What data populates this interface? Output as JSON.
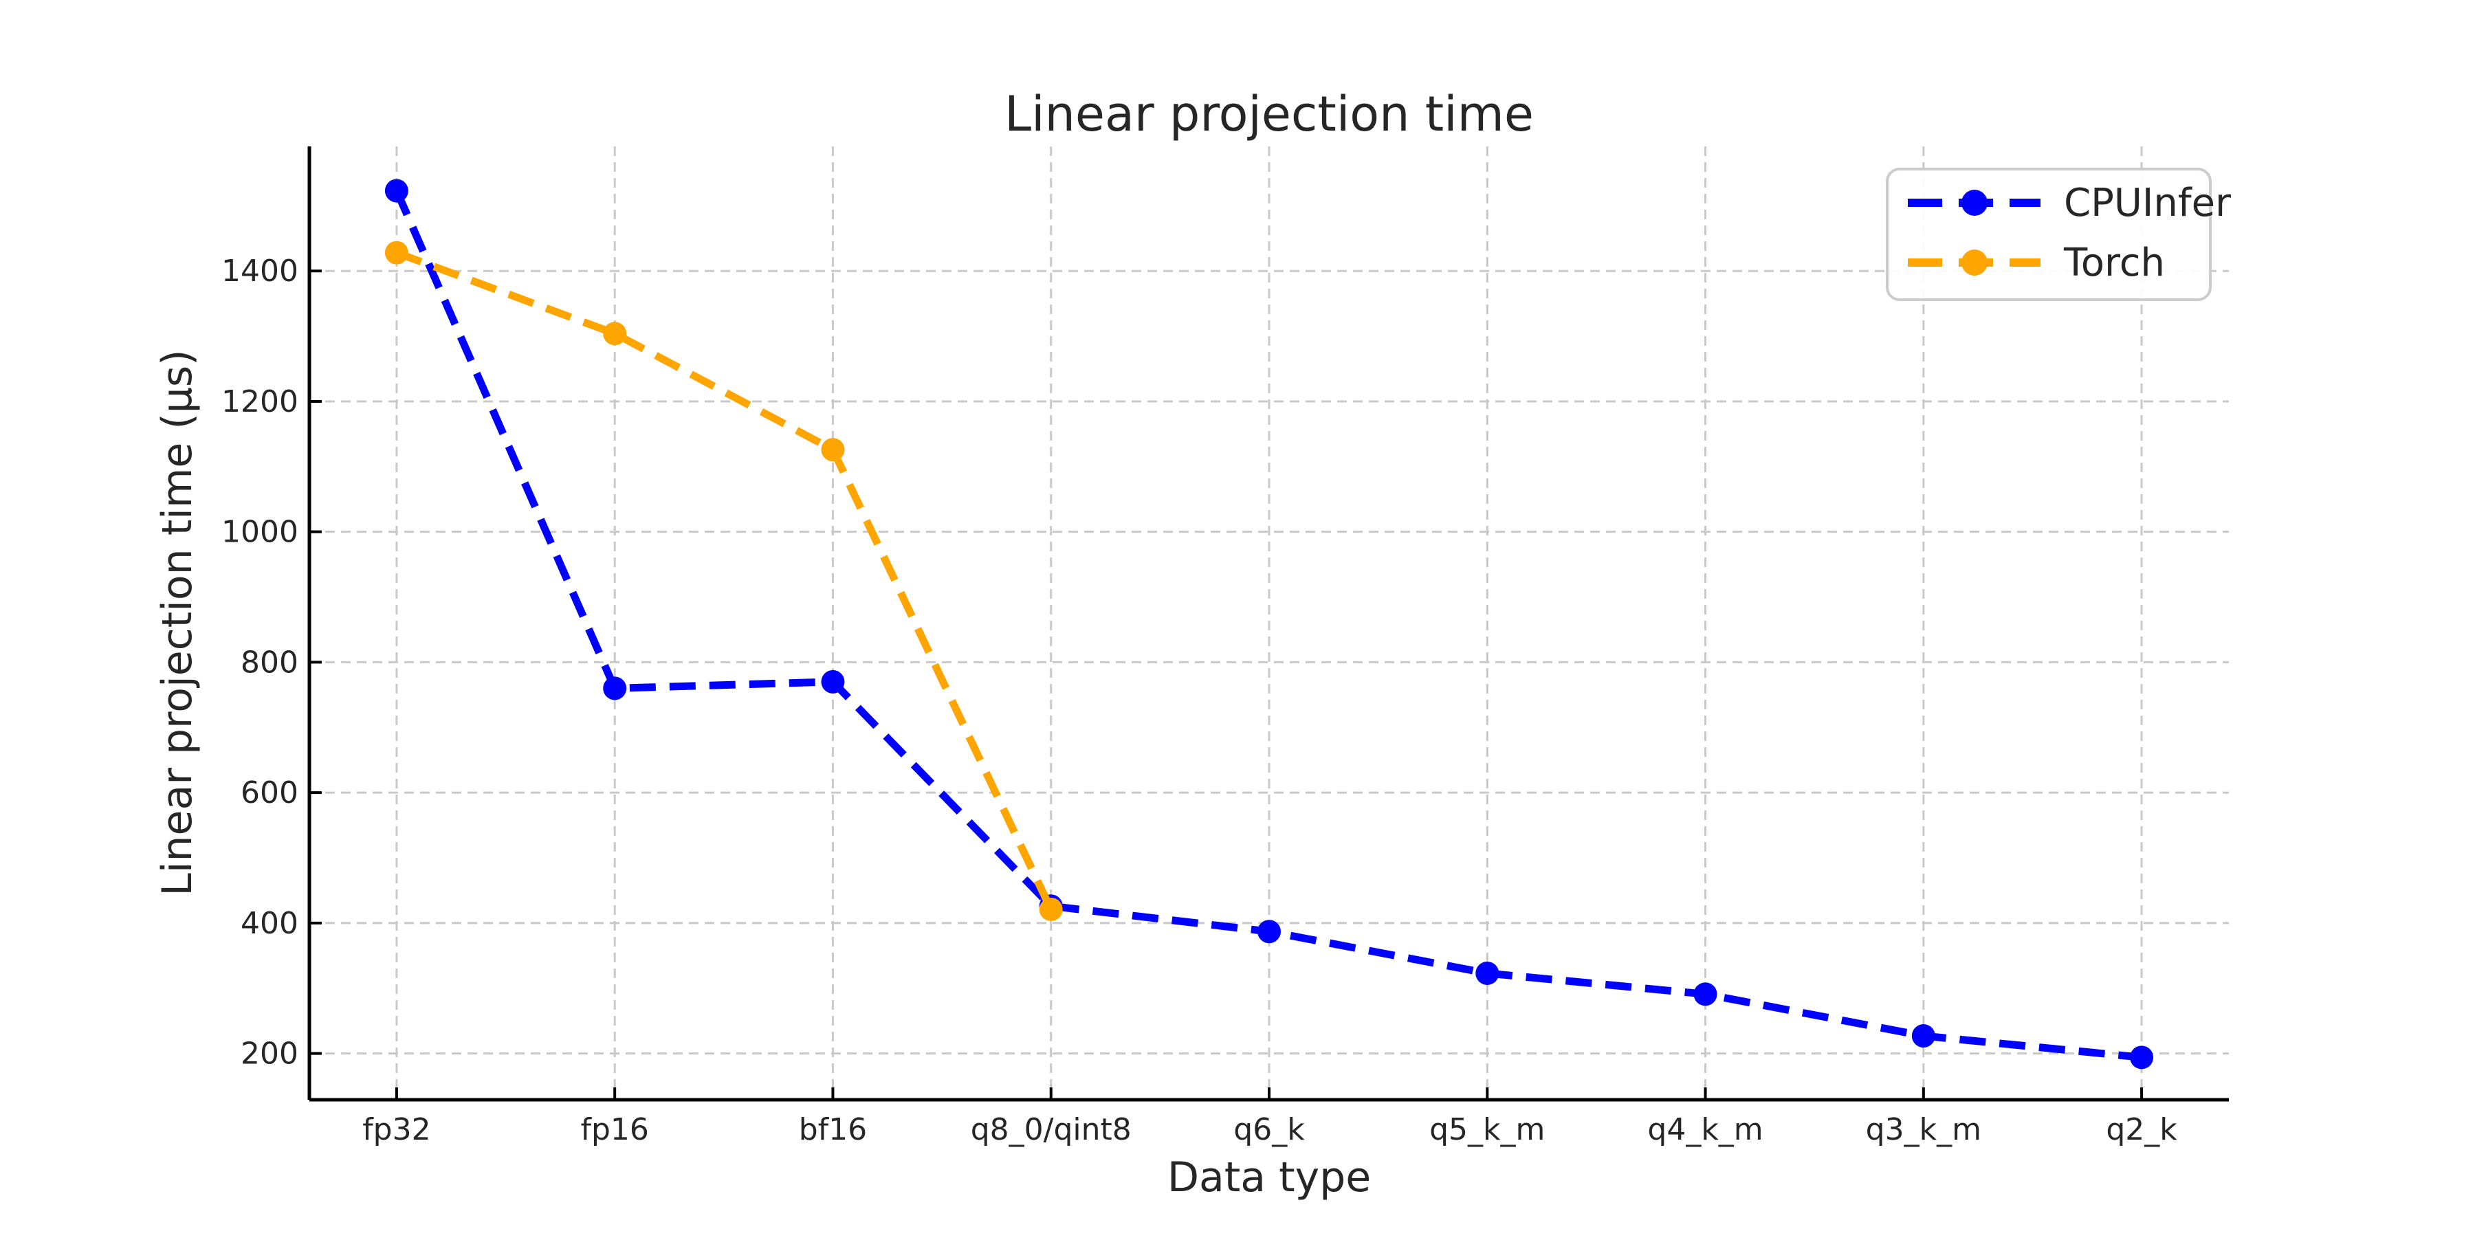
{
  "chart_data": {
    "type": "line",
    "title": "Linear projection time",
    "xlabel": "Data type",
    "ylabel": "Linear projection time (µs)",
    "categories": [
      "fp32",
      "fp16",
      "bf16",
      "q8_0/qint8",
      "q6_k",
      "q5_k_m",
      "q4_k_m",
      "q3_k_m",
      "q2_k"
    ],
    "series": [
      {
        "name": "CPUInfer",
        "color": "#0000ff",
        "values": [
          1523,
          760,
          770,
          426,
          387,
          323,
          291,
          227,
          194
        ]
      },
      {
        "name": "Torch",
        "color": "#ffa500",
        "values": [
          1428,
          1304,
          1126,
          421,
          null,
          null,
          null,
          null,
          null
        ]
      }
    ],
    "yticks": [
      200,
      400,
      600,
      800,
      1000,
      1200,
      1400
    ],
    "ylim": [
      129,
      1591
    ],
    "grid": true,
    "line_style": "dashed",
    "marker": "circle",
    "legend": {
      "position": "upper right",
      "entries": [
        "CPUInfer",
        "Torch"
      ]
    },
    "colors": {
      "grid": "#c9c9c9",
      "spine": "#000000",
      "text": "#262626",
      "legend_border": "#cccccc",
      "background": "#ffffff"
    }
  }
}
